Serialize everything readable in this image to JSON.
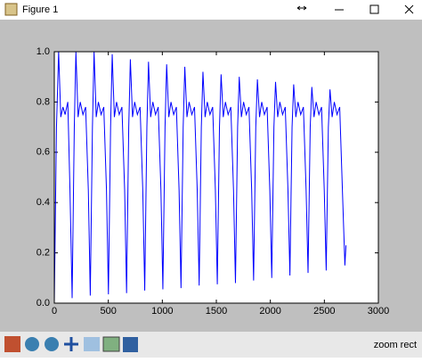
{
  "window": {
    "title": "Figure 1",
    "status": "zoom rect"
  },
  "chart_data": {
    "type": "line",
    "xlim": [
      0,
      3000
    ],
    "ylim": [
      0,
      1
    ],
    "xticks": [
      0,
      500,
      1000,
      1500,
      2000,
      2500,
      3000
    ],
    "yticks": [
      {
        "value": 0,
        "label": "0.0"
      },
      {
        "value": 0.2,
        "label": "0.2"
      },
      {
        "value": 0.4,
        "label": "0.4"
      },
      {
        "value": 0.6,
        "label": "0.6"
      },
      {
        "value": 0.8,
        "label": "0.8"
      },
      {
        "value": 1,
        "label": "1.0"
      }
    ],
    "grid": false,
    "series": [
      {
        "color": "#0000ff",
        "x": [
          0,
          20,
          40,
          60,
          80,
          100,
          125,
          145,
          165,
          185,
          200,
          220,
          240,
          265,
          290,
          315,
          333,
          353,
          368,
          388,
          408,
          433,
          458,
          483,
          501,
          521,
          536,
          556,
          576,
          601,
          626,
          651,
          669,
          689,
          704,
          724,
          744,
          769,
          794,
          819,
          837,
          857,
          872,
          892,
          912,
          937,
          962,
          987,
          1005,
          1025,
          1040,
          1060,
          1080,
          1105,
          1130,
          1155,
          1173,
          1193,
          1208,
          1228,
          1248,
          1273,
          1298,
          1323,
          1341,
          1361,
          1376,
          1396,
          1416,
          1441,
          1466,
          1491,
          1509,
          1529,
          1544,
          1564,
          1584,
          1609,
          1634,
          1659,
          1677,
          1697,
          1712,
          1732,
          1752,
          1777,
          1802,
          1827,
          1845,
          1865,
          1880,
          1900,
          1920,
          1945,
          1970,
          1995,
          2013,
          2033,
          2048,
          2068,
          2088,
          2113,
          2138,
          2163,
          2181,
          2201,
          2216,
          2236,
          2256,
          2281,
          2306,
          2331,
          2349,
          2369,
          2384,
          2404,
          2424,
          2449,
          2474,
          2499,
          2517,
          2537,
          2552,
          2572,
          2592,
          2617,
          2642,
          2667,
          2690,
          2700
        ],
        "values": [
          0.0,
          0.7,
          1.0,
          0.74,
          0.78,
          0.75,
          0.8,
          0.45,
          0.02,
          0.7,
          1.0,
          0.74,
          0.8,
          0.75,
          0.78,
          0.45,
          0.03,
          0.7,
          1.0,
          0.74,
          0.8,
          0.75,
          0.78,
          0.45,
          0.035,
          0.7,
          0.99,
          0.74,
          0.8,
          0.75,
          0.78,
          0.45,
          0.04,
          0.7,
          0.97,
          0.74,
          0.8,
          0.75,
          0.78,
          0.45,
          0.05,
          0.7,
          0.96,
          0.74,
          0.8,
          0.75,
          0.78,
          0.45,
          0.055,
          0.7,
          0.95,
          0.74,
          0.8,
          0.75,
          0.78,
          0.45,
          0.06,
          0.7,
          0.94,
          0.74,
          0.8,
          0.75,
          0.78,
          0.45,
          0.07,
          0.7,
          0.92,
          0.74,
          0.8,
          0.75,
          0.78,
          0.45,
          0.075,
          0.7,
          0.91,
          0.74,
          0.8,
          0.75,
          0.78,
          0.45,
          0.08,
          0.7,
          0.9,
          0.74,
          0.8,
          0.75,
          0.78,
          0.45,
          0.09,
          0.7,
          0.89,
          0.74,
          0.8,
          0.75,
          0.78,
          0.45,
          0.1,
          0.7,
          0.88,
          0.74,
          0.8,
          0.75,
          0.78,
          0.45,
          0.11,
          0.7,
          0.87,
          0.74,
          0.8,
          0.75,
          0.78,
          0.45,
          0.12,
          0.7,
          0.86,
          0.74,
          0.8,
          0.75,
          0.78,
          0.45,
          0.13,
          0.7,
          0.85,
          0.74,
          0.8,
          0.75,
          0.78,
          0.45,
          0.15,
          0.23
        ]
      }
    ]
  }
}
